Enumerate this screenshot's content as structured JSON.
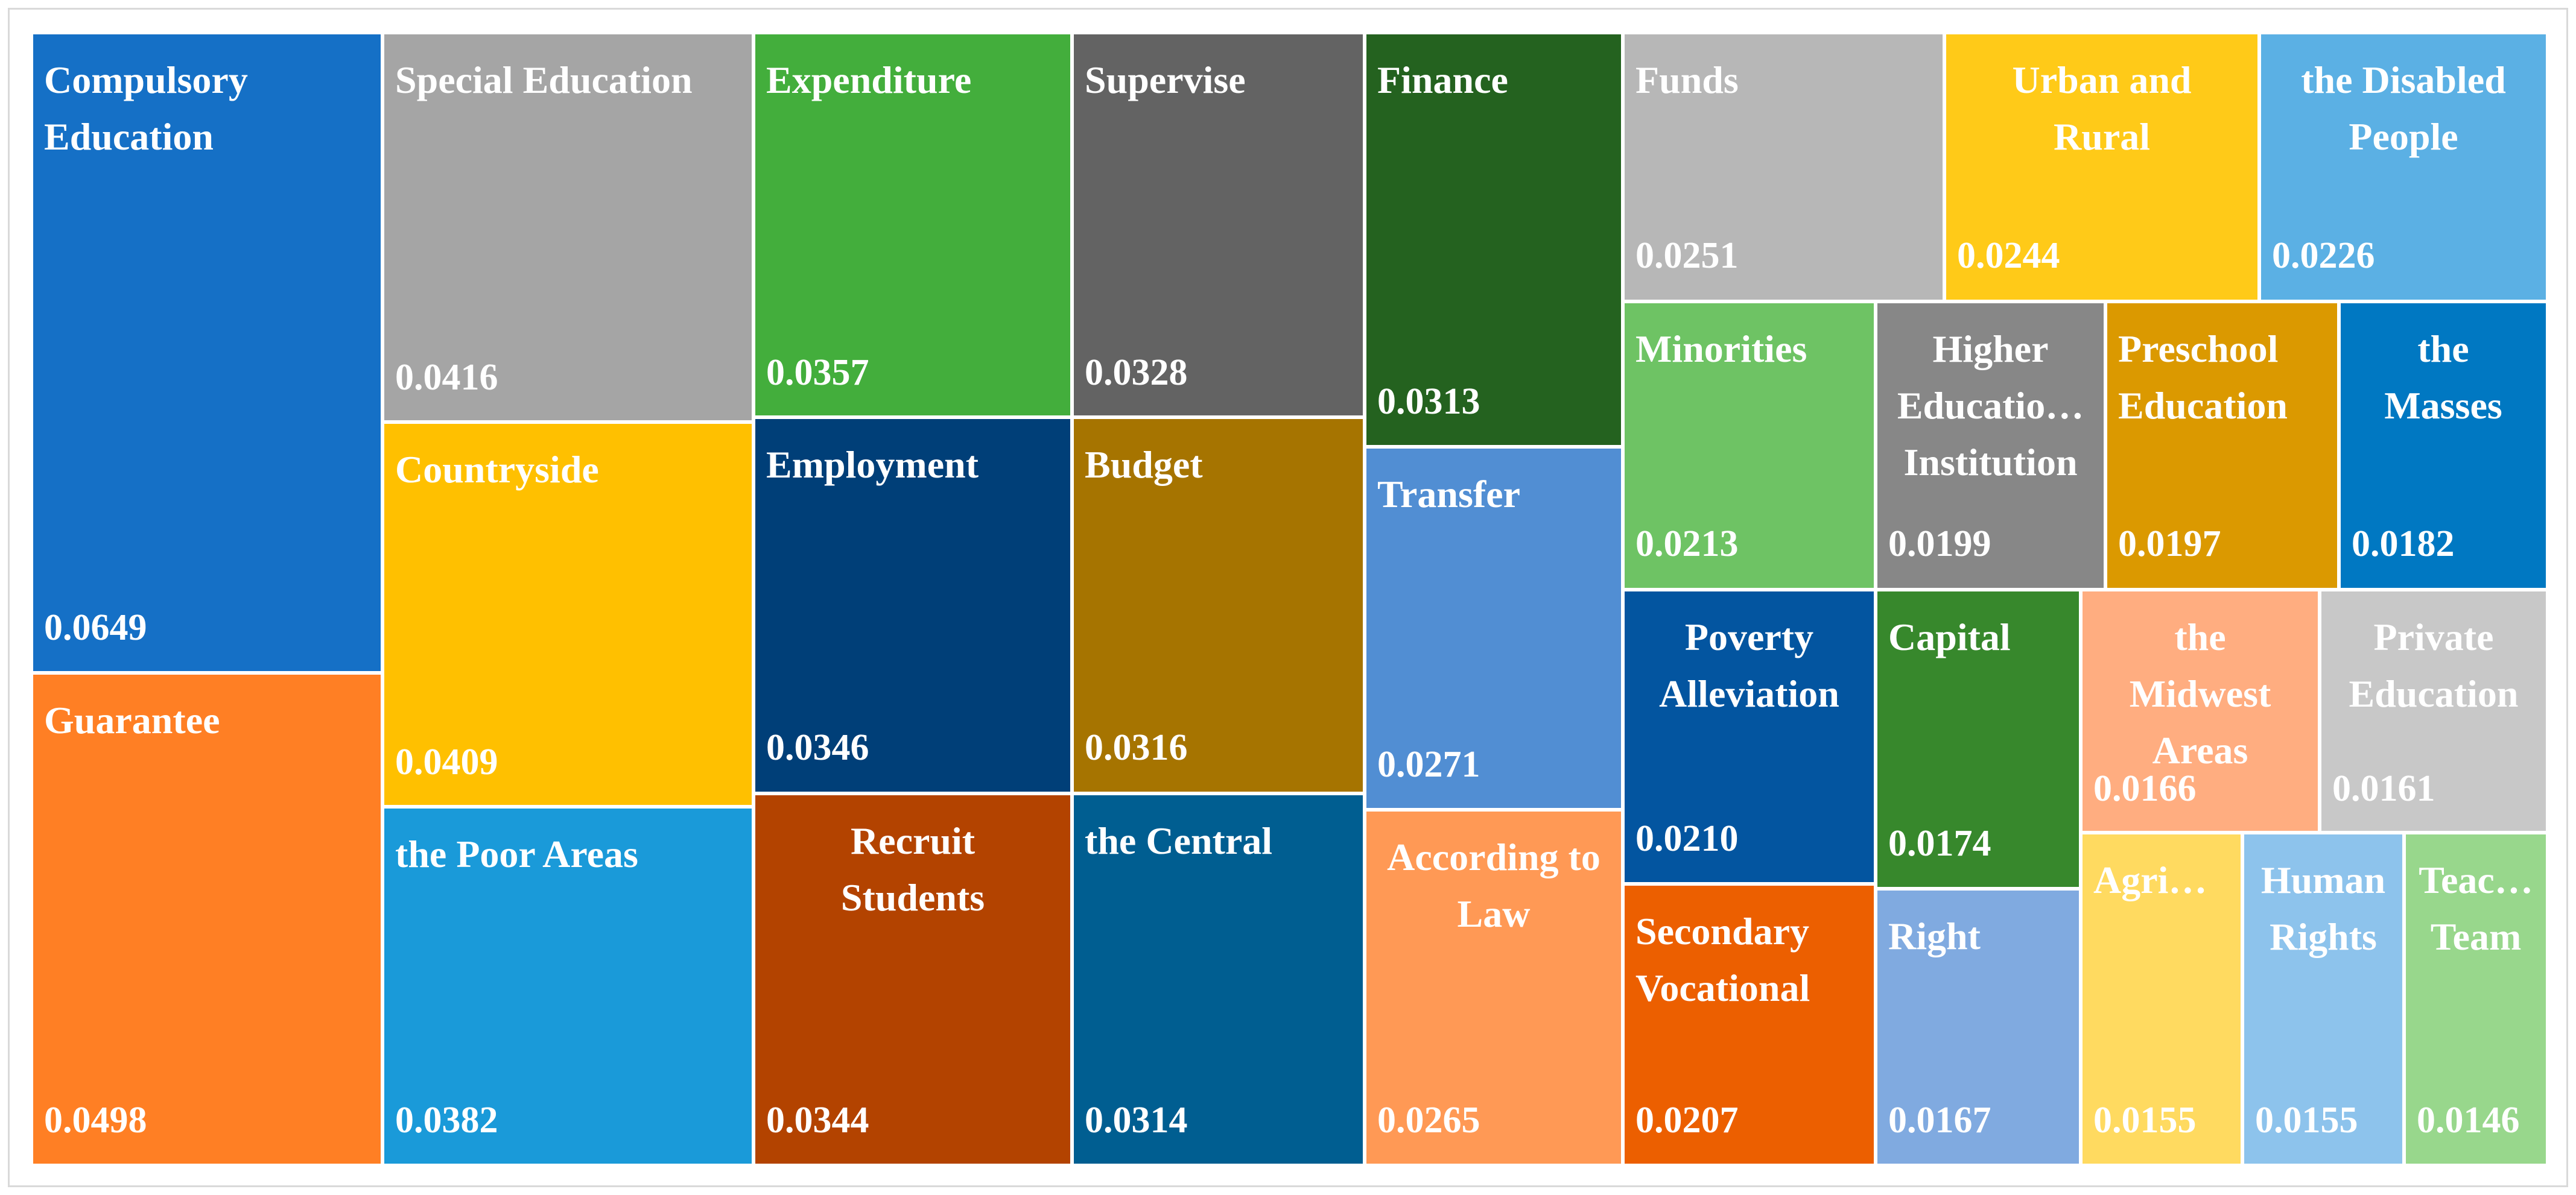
{
  "chart_data": {
    "type": "treemap",
    "title": "",
    "items": [
      {
        "label": "Compulsory Education",
        "lines": [
          "Compulsory",
          "Education"
        ],
        "value": 0.0649,
        "value_text": "0.0649",
        "color": "#1570C6"
      },
      {
        "label": "Guarantee",
        "lines": [
          "Guarantee"
        ],
        "value": 0.0498,
        "value_text": "0.0498",
        "color": "#FF7F24"
      },
      {
        "label": "Special Education",
        "lines": [
          "Special Education"
        ],
        "value": 0.0416,
        "value_text": "0.0416",
        "color": "#A5A5A5"
      },
      {
        "label": "Countryside",
        "lines": [
          "Countryside"
        ],
        "value": 0.0409,
        "value_text": "0.0409",
        "color": "#FFC000"
      },
      {
        "label": "the Poor Areas",
        "lines": [
          "the Poor Areas"
        ],
        "value": 0.0382,
        "value_text": "0.0382",
        "color": "#1A9AD9"
      },
      {
        "label": "Expenditure",
        "lines": [
          "Expenditure"
        ],
        "value": 0.0357,
        "value_text": "0.0357",
        "color": "#43AE3C"
      },
      {
        "label": "Employment",
        "lines": [
          "Employment"
        ],
        "value": 0.0346,
        "value_text": "0.0346",
        "color": "#003F78"
      },
      {
        "label": "Recruit Students",
        "lines": [
          "Recruit",
          "Students"
        ],
        "value": 0.0344,
        "value_text": "0.0344",
        "color": "#B34300"
      },
      {
        "label": "Supervise",
        "lines": [
          "Supervise"
        ],
        "value": 0.0328,
        "value_text": "0.0328",
        "color": "#636363"
      },
      {
        "label": "Budget",
        "lines": [
          "Budget"
        ],
        "value": 0.0316,
        "value_text": "0.0316",
        "color": "#A67400"
      },
      {
        "label": "the Central",
        "lines": [
          "the Central"
        ],
        "value": 0.0314,
        "value_text": "0.0314",
        "color": "#005E91"
      },
      {
        "label": "Finance",
        "lines": [
          "Finance"
        ],
        "value": 0.0313,
        "value_text": "0.0313",
        "color": "#24621F"
      },
      {
        "label": "Transfer",
        "lines": [
          "Transfer"
        ],
        "value": 0.0271,
        "value_text": "0.0271",
        "color": "#518ED3"
      },
      {
        "label": "According to Law",
        "lines": [
          "According to",
          "Law"
        ],
        "value": 0.0265,
        "value_text": "0.0265",
        "color": "#FF9955"
      },
      {
        "label": "Funds",
        "lines": [
          "Funds"
        ],
        "value": 0.0251,
        "value_text": "0.0251",
        "color": "#B7B7B7"
      },
      {
        "label": "Urban and Rural",
        "lines": [
          "Urban and",
          "Rural"
        ],
        "value": 0.0244,
        "value_text": "0.0244",
        "color": "#FFCA18"
      },
      {
        "label": "the Disabled People",
        "lines": [
          "the Disabled",
          "People"
        ],
        "value": 0.0226,
        "value_text": "0.0226",
        "color": "#5BB0E4"
      },
      {
        "label": "Minorities",
        "lines": [
          "Minorities"
        ],
        "value": 0.0213,
        "value_text": "0.0213",
        "color": "#6EC364"
      },
      {
        "label": "Higher Education Institution",
        "lines": [
          "Higher",
          "Educatio…",
          "Institution"
        ],
        "value": 0.0199,
        "value_text": "0.0199",
        "color": "#878787"
      },
      {
        "label": "Preschool Education",
        "lines": [
          "Preschool",
          "Education"
        ],
        "value": 0.0197,
        "value_text": "0.0197",
        "color": "#DB9900"
      },
      {
        "label": "the Masses",
        "lines": [
          "the",
          "Masses"
        ],
        "value": 0.0182,
        "value_text": "0.0182",
        "color": "#0078C2"
      },
      {
        "label": "Poverty Alleviation",
        "lines": [
          "Poverty",
          "Alleviation"
        ],
        "value": 0.021,
        "value_text": "0.0210",
        "color": "#0355A0"
      },
      {
        "label": "Secondary Vocational",
        "lines": [
          "Secondary",
          "Vocational"
        ],
        "value": 0.0207,
        "value_text": "0.0207",
        "color": "#EC5F00"
      },
      {
        "label": "Capital",
        "lines": [
          "Capital"
        ],
        "value": 0.0174,
        "value_text": "0.0174",
        "color": "#37882C"
      },
      {
        "label": "Right",
        "lines": [
          "Right"
        ],
        "value": 0.0167,
        "value_text": "0.0167",
        "color": "#80AAE0"
      },
      {
        "label": "the Midwest Areas",
        "lines": [
          "the",
          "Midwest",
          "Areas"
        ],
        "value": 0.0166,
        "value_text": "0.0166",
        "color": "#FFAD80"
      },
      {
        "label": "Private Education",
        "lines": [
          "Private",
          "Education"
        ],
        "value": 0.0161,
        "value_text": "0.0161",
        "color": "#C8C8C8"
      },
      {
        "label": "Agriculture",
        "lines": [
          "Agri…"
        ],
        "value": 0.0155,
        "value_text": "0.0155",
        "color": "#FFDA60"
      },
      {
        "label": "Human Rights",
        "lines": [
          "Human",
          "Rights"
        ],
        "value": 0.0155,
        "value_text": "0.0155",
        "color": "#8DC3EC"
      },
      {
        "label": "Teacher Team",
        "lines": [
          "Teac…",
          "Team"
        ],
        "value": 0.0146,
        "value_text": "0.0146",
        "color": "#98D78C"
      }
    ]
  }
}
